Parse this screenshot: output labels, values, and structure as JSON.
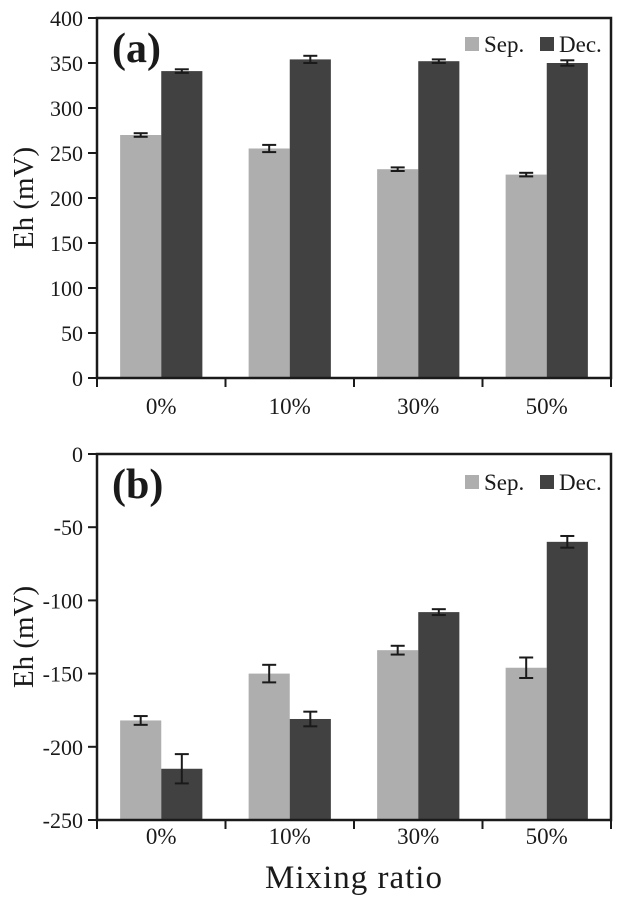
{
  "figure": {
    "xlabel": "Mixing ratio",
    "colors": {
      "sep_bar": "#aeaeae",
      "dec_bar": "#414141",
      "axis": "#1a1a1a",
      "background": "#ffffff"
    }
  },
  "chart_data": [
    {
      "type": "bar",
      "panel_label": "(a)",
      "ylabel": "Eh (mV)",
      "xlabel": "",
      "categories": [
        "0%",
        "10%",
        "30%",
        "50%"
      ],
      "series": [
        {
          "name": "Sep.",
          "color": "#aeaeae",
          "values": [
            270,
            255,
            232,
            226
          ],
          "errors": [
            2,
            4,
            2,
            2
          ]
        },
        {
          "name": "Dec.",
          "color": "#414141",
          "values": [
            341,
            354,
            352,
            350
          ],
          "errors": [
            2,
            4,
            2,
            3
          ]
        }
      ],
      "ylim": [
        0,
        400
      ],
      "ytick_step": 50,
      "grid": false,
      "legend_position": "top-right",
      "bars_baseline": "axis-min"
    },
    {
      "type": "bar",
      "panel_label": "(b)",
      "ylabel": "Eh (mV)",
      "xlabel": "Mixing ratio",
      "categories": [
        "0%",
        "10%",
        "30%",
        "50%"
      ],
      "series": [
        {
          "name": "Sep.",
          "color": "#aeaeae",
          "values": [
            -182,
            -150,
            -134,
            -146
          ],
          "errors": [
            3,
            6,
            3,
            7
          ]
        },
        {
          "name": "Dec.",
          "color": "#414141",
          "values": [
            -215,
            -181,
            -108,
            -60
          ],
          "errors": [
            10,
            5,
            2,
            4
          ]
        }
      ],
      "ylim": [
        -250,
        0
      ],
      "ytick_step": 50,
      "grid": false,
      "legend_position": "top-right",
      "bars_baseline": "axis-min"
    }
  ]
}
